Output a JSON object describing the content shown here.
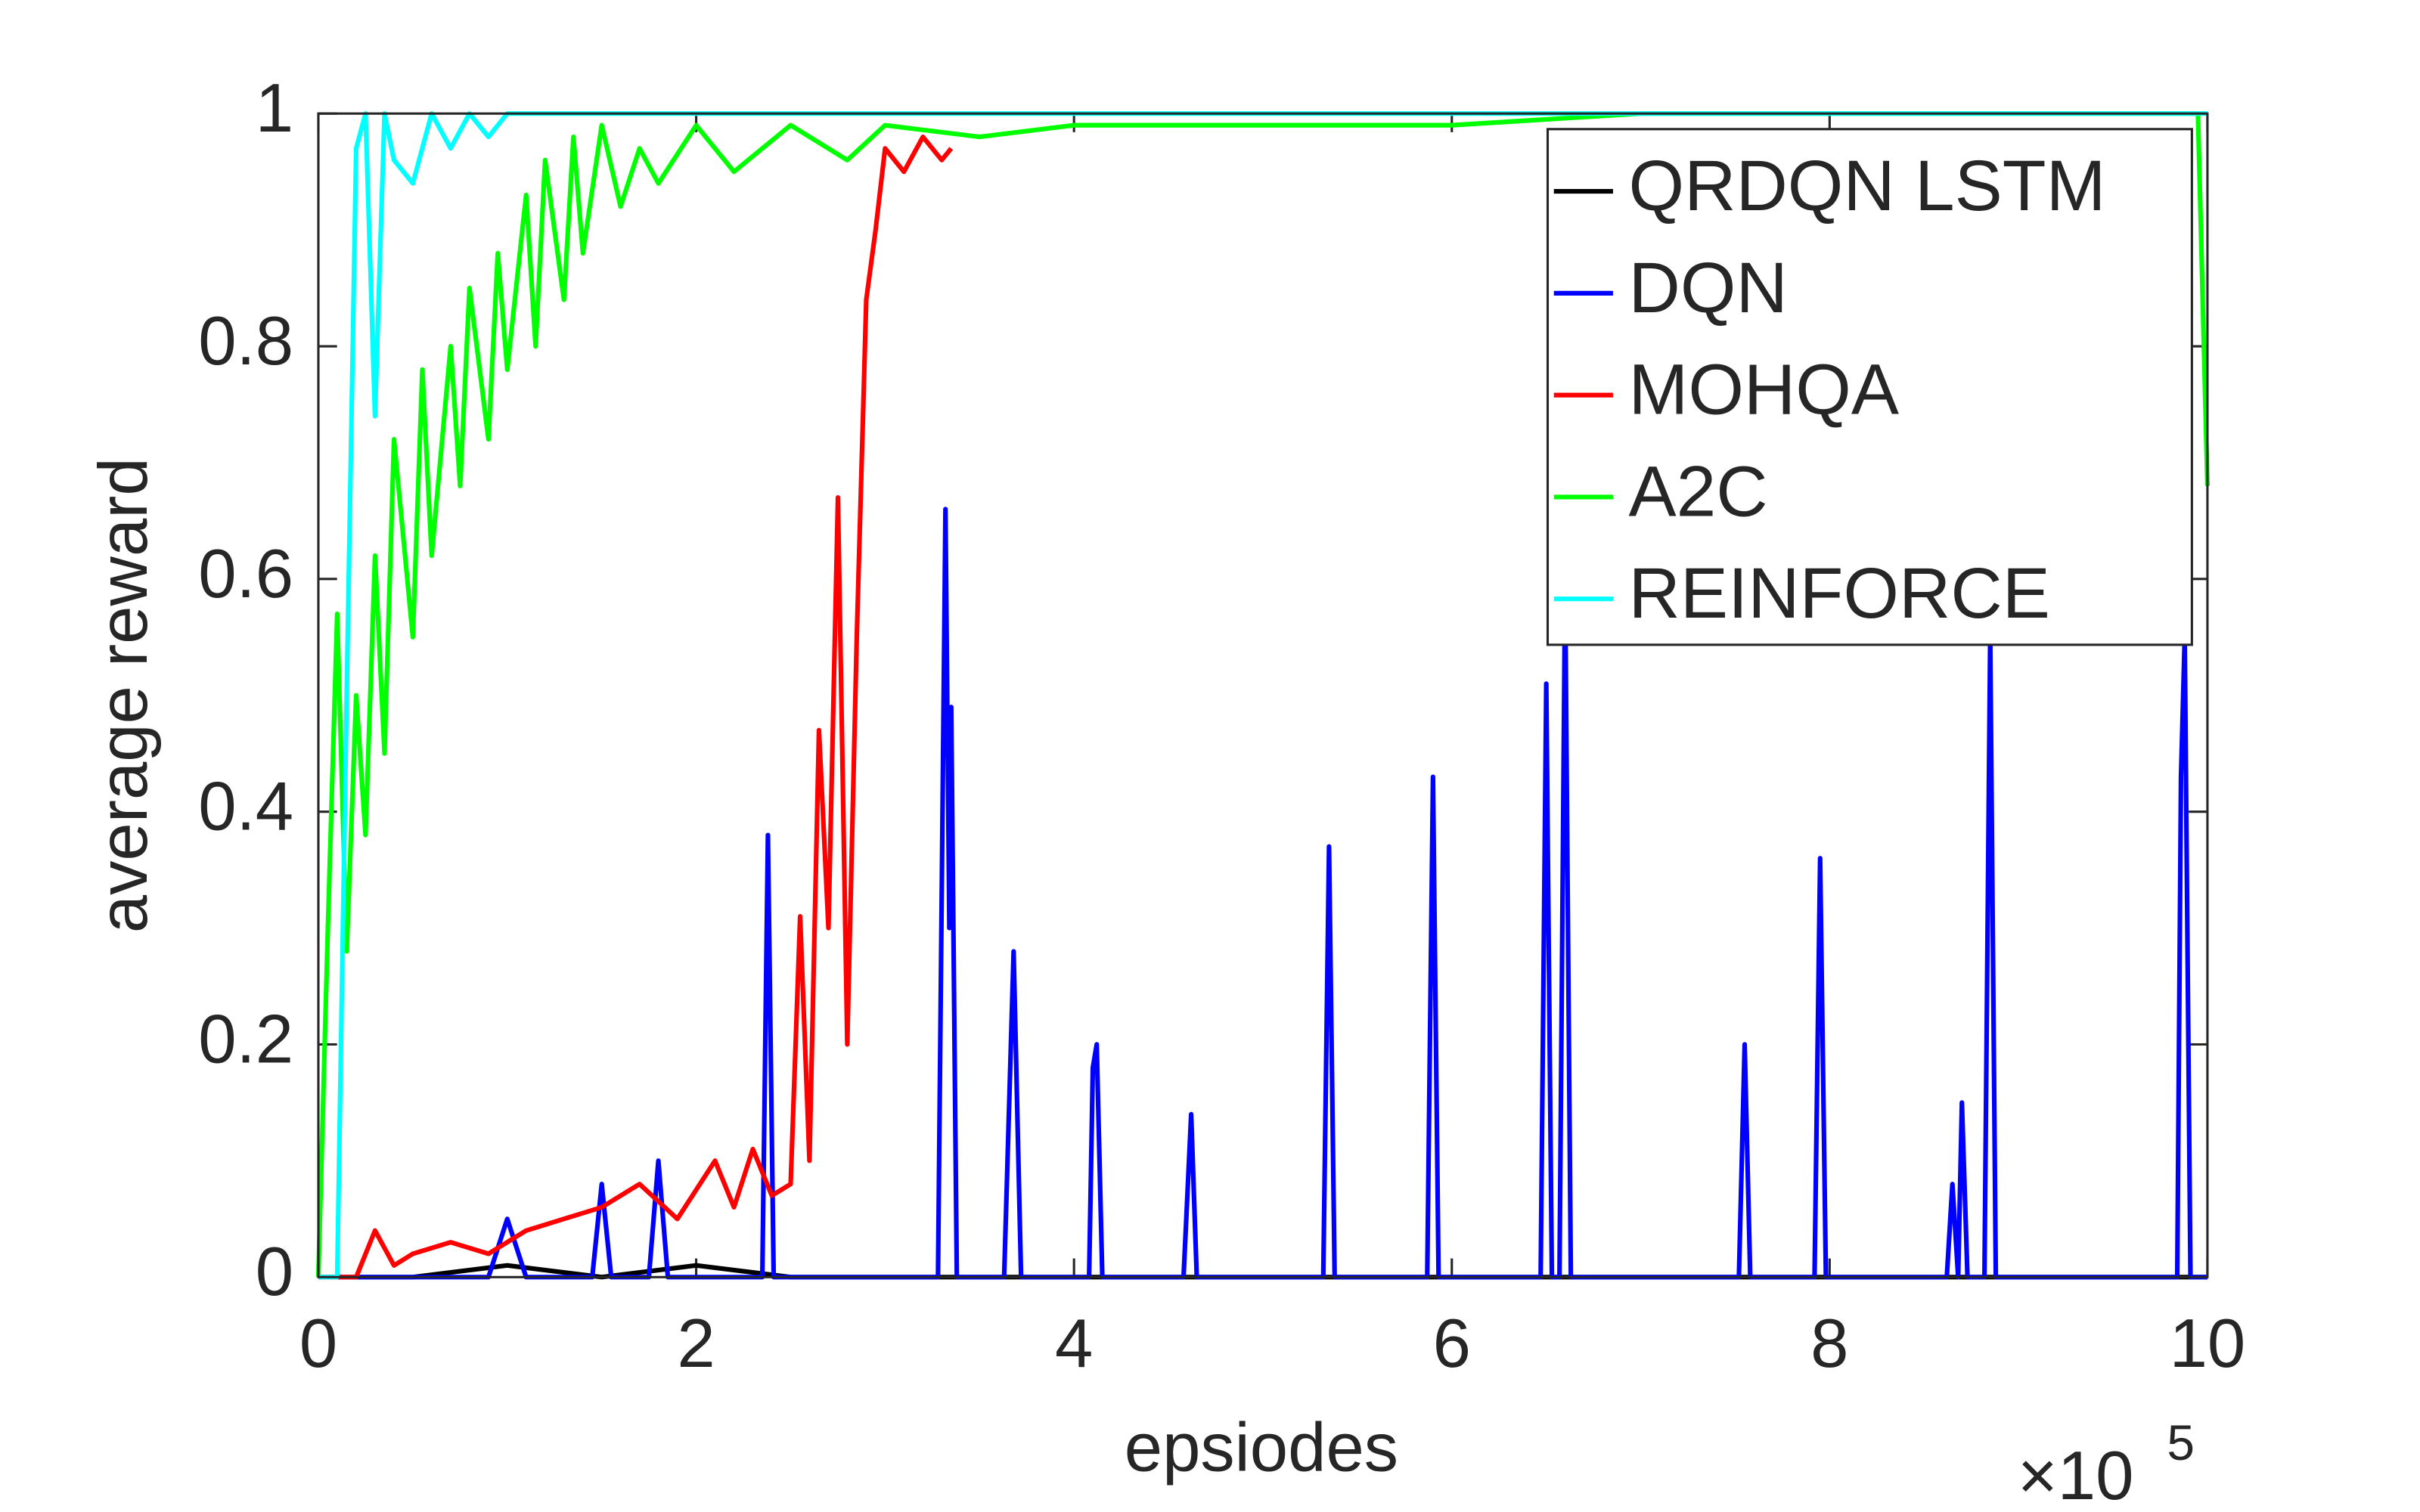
{
  "chart_data": {
    "type": "line",
    "x_label": "epsiodes",
    "y_label": "average reward",
    "x_multiplier": "×10",
    "x_exponent": "5",
    "xlim": [
      0,
      10
    ],
    "xticks": [
      0,
      2,
      4,
      6,
      8,
      10
    ],
    "ylim": [
      0,
      1
    ],
    "yticks": [
      0,
      0.2,
      0.4,
      0.6,
      0.8,
      1
    ],
    "legend": "upper-right",
    "series": [
      {
        "name": "QRDQN LSTM",
        "color": "#000000",
        "x": [
          0,
          0.5,
          1,
          1.5,
          2,
          2.5,
          3,
          10
        ],
        "values": [
          0,
          0,
          0.01,
          0,
          0.01,
          0,
          0,
          0
        ]
      },
      {
        "name": "DQN",
        "color": "#0000ff",
        "x": [
          0,
          0.9,
          1.0,
          1.1,
          1.45,
          1.5,
          1.55,
          1.75,
          1.8,
          1.85,
          2.35,
          2.38,
          2.41,
          3.28,
          3.32,
          3.34,
          3.35,
          3.38,
          3.63,
          3.68,
          3.72,
          4.08,
          4.1,
          4.12,
          4.15,
          4.58,
          4.62,
          4.65,
          5.32,
          5.35,
          5.38,
          5.87,
          5.9,
          5.93,
          6.47,
          6.5,
          6.53,
          6.57,
          6.6,
          6.63,
          7.52,
          7.55,
          7.58,
          7.92,
          7.95,
          7.98,
          8.62,
          8.65,
          8.68,
          8.7,
          8.73,
          8.82,
          8.85,
          8.88,
          9.84,
          9.86,
          9.88,
          9.91,
          10
        ],
        "values": [
          0,
          0,
          0.05,
          0,
          0,
          0.08,
          0,
          0,
          0.1,
          0,
          0,
          0.38,
          0,
          0,
          0.66,
          0.3,
          0.49,
          0,
          0,
          0.28,
          0,
          0,
          0.18,
          0.2,
          0,
          0,
          0.14,
          0,
          0,
          0.37,
          0,
          0,
          0.43,
          0,
          0,
          0.51,
          0,
          0,
          0.6,
          0,
          0,
          0.2,
          0,
          0,
          0.36,
          0,
          0,
          0.08,
          0,
          0.15,
          0,
          0,
          0.55,
          0,
          0,
          0.43,
          0.55,
          0,
          0
        ]
      },
      {
        "name": "MOHQA",
        "color": "#ff0000",
        "x": [
          0,
          0.2,
          0.3,
          0.4,
          0.5,
          0.7,
          0.9,
          1.1,
          1.3,
          1.5,
          1.7,
          1.9,
          2.1,
          2.2,
          2.3,
          2.4,
          2.5,
          2.55,
          2.6,
          2.65,
          2.7,
          2.75,
          2.8,
          2.85,
          2.9,
          2.95,
          3.0,
          3.1,
          3.2,
          3.3,
          3.35
        ],
        "values": [
          0,
          0,
          0.04,
          0.01,
          0.02,
          0.03,
          0.02,
          0.04,
          0.05,
          0.06,
          0.08,
          0.05,
          0.1,
          0.06,
          0.11,
          0.07,
          0.08,
          0.31,
          0.1,
          0.47,
          0.3,
          0.67,
          0.2,
          0.55,
          0.84,
          0.9,
          0.97,
          0.95,
          0.98,
          0.96,
          0.97
        ]
      },
      {
        "name": "A2C",
        "color": "#00ff00",
        "x": [
          0,
          0.05,
          0.1,
          0.15,
          0.2,
          0.25,
          0.3,
          0.35,
          0.4,
          0.5,
          0.55,
          0.6,
          0.7,
          0.75,
          0.8,
          0.9,
          0.95,
          1.0,
          1.1,
          1.15,
          1.2,
          1.3,
          1.35,
          1.4,
          1.5,
          1.6,
          1.7,
          1.8,
          2.0,
          2.2,
          2.5,
          2.8,
          3.0,
          3.5,
          4.0,
          5.0,
          6.0,
          7.0,
          8.0,
          9.0,
          9.95,
          10
        ],
        "values": [
          0,
          0.3,
          0.57,
          0.28,
          0.5,
          0.38,
          0.62,
          0.45,
          0.72,
          0.55,
          0.78,
          0.62,
          0.8,
          0.68,
          0.85,
          0.72,
          0.88,
          0.78,
          0.93,
          0.8,
          0.96,
          0.84,
          0.98,
          0.88,
          0.99,
          0.92,
          0.97,
          0.94,
          0.99,
          0.95,
          0.99,
          0.96,
          0.99,
          0.98,
          0.99,
          0.99,
          0.99,
          1,
          1,
          1,
          1,
          0.68
        ]
      },
      {
        "name": "REINFORCE",
        "color": "#00ffff",
        "x": [
          0,
          0.1,
          0.15,
          0.2,
          0.25,
          0.3,
          0.35,
          0.4,
          0.5,
          0.6,
          0.7,
          0.8,
          0.9,
          1.0,
          1.2,
          1.5,
          2,
          3,
          4,
          5,
          6,
          7,
          8,
          9,
          10
        ],
        "values": [
          0,
          0,
          0.5,
          0.97,
          1,
          0.74,
          1,
          0.96,
          0.94,
          1,
          0.97,
          1,
          0.98,
          1,
          1,
          1,
          1,
          1,
          1,
          1,
          1,
          1,
          1,
          1,
          1
        ]
      }
    ]
  }
}
